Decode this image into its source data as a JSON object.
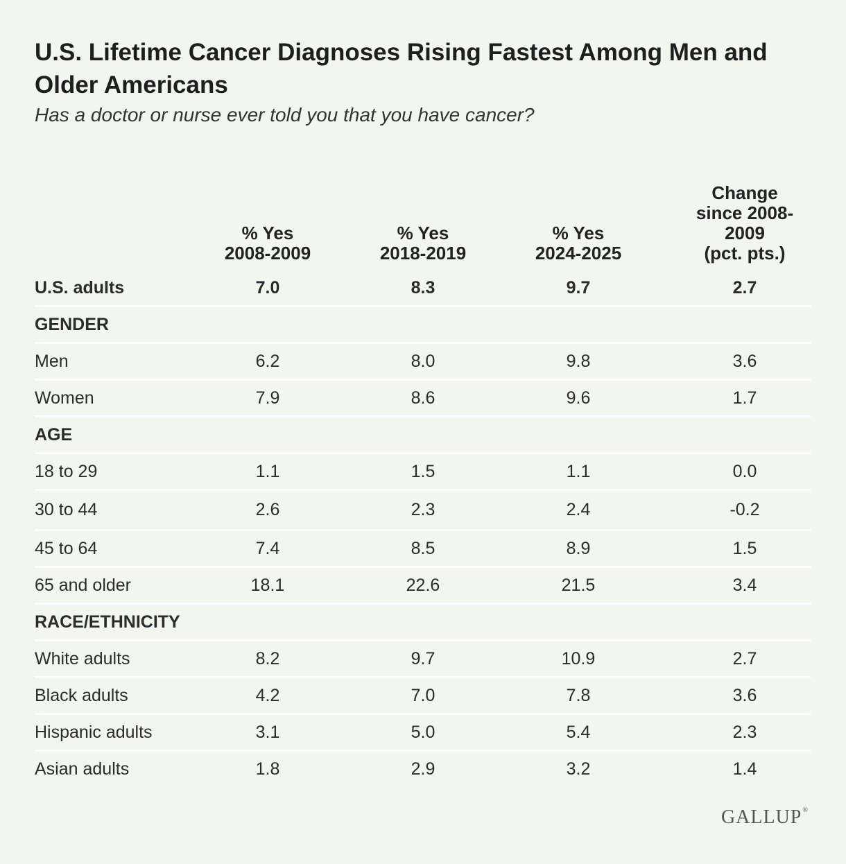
{
  "title": "U.S. Lifetime Cancer Diagnoses Rising Fastest Among Men and Older Americans",
  "subtitle": "Has a doctor or nurse ever told you that you have cancer?",
  "brand": {
    "name": "GALLUP",
    "mark": "®"
  },
  "chart_data": {
    "type": "table",
    "title": "U.S. Lifetime Cancer Diagnoses Rising Fastest Among Men and Older Americans",
    "subtitle": "Has a doctor or nurse ever told you that you have cancer?",
    "columns": [
      {
        "line1": "% Yes",
        "line2": "2008-2009",
        "line3": "",
        "line4": ""
      },
      {
        "line1": "% Yes",
        "line2": "2018-2019",
        "line3": "",
        "line4": ""
      },
      {
        "line1": "% Yes",
        "line2": "2024-2025",
        "line3": "",
        "line4": ""
      },
      {
        "line1": "Change",
        "line2": "since 2008-",
        "line3": "2009",
        "line4": "(pct. pts.)"
      }
    ],
    "rows": [
      {
        "label": "U.S. adults",
        "values": [
          "7.0",
          "8.3",
          "9.7",
          "2.7"
        ],
        "kind": "total"
      },
      {
        "label": "GENDER",
        "values": [
          "",
          "",
          "",
          ""
        ],
        "kind": "section"
      },
      {
        "label": "Men",
        "values": [
          "6.2",
          "8.0",
          "9.8",
          "3.6"
        ],
        "kind": "data"
      },
      {
        "label": "Women",
        "values": [
          "7.9",
          "8.6",
          "9.6",
          "1.7"
        ],
        "kind": "data"
      },
      {
        "label": "AGE",
        "values": [
          "",
          "",
          "",
          ""
        ],
        "kind": "section"
      },
      {
        "label": "18 to 29",
        "values": [
          "1.1",
          "1.5",
          "1.1",
          "0.0"
        ],
        "kind": "data"
      },
      {
        "label": "30 to 44",
        "values": [
          "2.6",
          "2.3",
          "2.4",
          "-0.2"
        ],
        "kind": "data"
      },
      {
        "label": "45 to 64",
        "values": [
          "7.4",
          "8.5",
          "8.9",
          "1.5"
        ],
        "kind": "data"
      },
      {
        "label": "65 and older",
        "values": [
          "18.1",
          "22.6",
          "21.5",
          "3.4"
        ],
        "kind": "data"
      },
      {
        "label": "RACE/ETHNICITY",
        "values": [
          "",
          "",
          "",
          ""
        ],
        "kind": "section"
      },
      {
        "label": "White adults",
        "values": [
          "8.2",
          "9.7",
          "10.9",
          "2.7"
        ],
        "kind": "data"
      },
      {
        "label": "Black adults",
        "values": [
          "4.2",
          "7.0",
          "7.8",
          "3.6"
        ],
        "kind": "data"
      },
      {
        "label": "Hispanic adults",
        "values": [
          "3.1",
          "5.0",
          "5.4",
          "2.3"
        ],
        "kind": "data"
      },
      {
        "label": "Asian adults",
        "values": [
          "1.8",
          "2.9",
          "3.2",
          "1.4"
        ],
        "kind": "data"
      }
    ]
  }
}
